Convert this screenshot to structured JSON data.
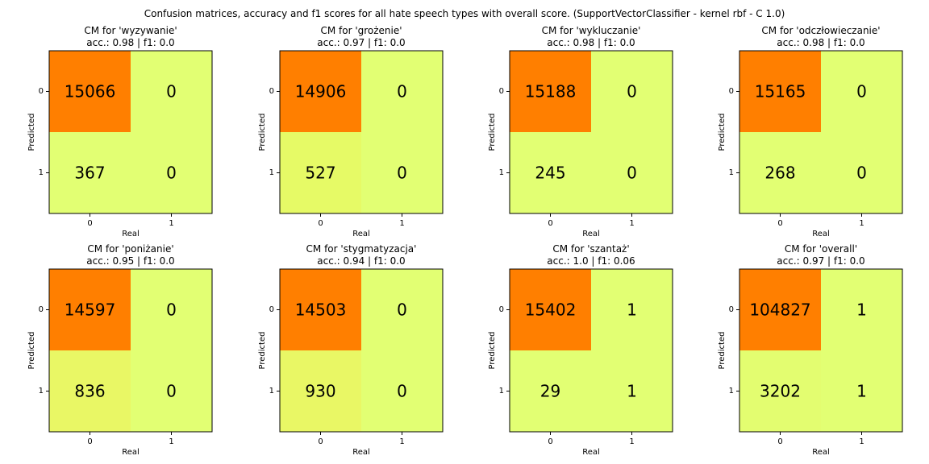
{
  "title": "Confusion matrices, accuracy and f1 scores for all hate speech types with overall score. (SupportVectorClassifier - kernel rbf - C 1.0)",
  "chart_data": [
    {
      "type": "heatmap",
      "title": "CM for 'wyzywanie'",
      "subtitle": "acc.: 0.98 | f1: 0.0",
      "xlabel": "Real",
      "ylabel": "Predicted",
      "x_ticks": [
        "0",
        "1"
      ],
      "y_ticks": [
        "0",
        "1"
      ],
      "matrix": [
        [
          15066,
          0
        ],
        [
          367,
          0
        ]
      ],
      "cell_colors": [
        [
          "#ff7f00",
          "#e2ff73"
        ],
        [
          "#e2ff73",
          "#e2ff73"
        ]
      ]
    },
    {
      "type": "heatmap",
      "title": "CM for 'grożenie'",
      "subtitle": "acc.: 0.97 | f1: 0.0",
      "xlabel": "Real",
      "ylabel": "Predicted",
      "x_ticks": [
        "0",
        "1"
      ],
      "y_ticks": [
        "0",
        "1"
      ],
      "matrix": [
        [
          14906,
          0
        ],
        [
          527,
          0
        ]
      ],
      "cell_colors": [
        [
          "#ff7f00",
          "#e2ff73"
        ],
        [
          "#e6fa66",
          "#e2ff73"
        ]
      ]
    },
    {
      "type": "heatmap",
      "title": "CM for 'wykluczanie'",
      "subtitle": "acc.: 0.98 | f1: 0.0",
      "xlabel": "Real",
      "ylabel": "Predicted",
      "x_ticks": [
        "0",
        "1"
      ],
      "y_ticks": [
        "0",
        "1"
      ],
      "matrix": [
        [
          15188,
          0
        ],
        [
          245,
          0
        ]
      ],
      "cell_colors": [
        [
          "#ff7f00",
          "#e2ff73"
        ],
        [
          "#e2ff73",
          "#e2ff73"
        ]
      ]
    },
    {
      "type": "heatmap",
      "title": "CM for 'odczłowieczanie'",
      "subtitle": "acc.: 0.98 | f1: 0.0",
      "xlabel": "Real",
      "ylabel": "Predicted",
      "x_ticks": [
        "0",
        "1"
      ],
      "y_ticks": [
        "0",
        "1"
      ],
      "matrix": [
        [
          15165,
          0
        ],
        [
          268,
          0
        ]
      ],
      "cell_colors": [
        [
          "#ff7f00",
          "#e2ff73"
        ],
        [
          "#e2ff73",
          "#e2ff73"
        ]
      ]
    },
    {
      "type": "heatmap",
      "title": "CM for 'poniżanie'",
      "subtitle": "acc.: 0.95 | f1: 0.0",
      "xlabel": "Real",
      "ylabel": "Predicted",
      "x_ticks": [
        "0",
        "1"
      ],
      "y_ticks": [
        "0",
        "1"
      ],
      "matrix": [
        [
          14597,
          0
        ],
        [
          836,
          0
        ]
      ],
      "cell_colors": [
        [
          "#ff7f00",
          "#e2ff73"
        ],
        [
          "#e9f765",
          "#e2ff73"
        ]
      ]
    },
    {
      "type": "heatmap",
      "title": "CM for 'stygmatyzacja'",
      "subtitle": "acc.: 0.94 | f1: 0.0",
      "xlabel": "Real",
      "ylabel": "Predicted",
      "x_ticks": [
        "0",
        "1"
      ],
      "y_ticks": [
        "0",
        "1"
      ],
      "matrix": [
        [
          14503,
          0
        ],
        [
          930,
          0
        ]
      ],
      "cell_colors": [
        [
          "#ff7f00",
          "#e2ff73"
        ],
        [
          "#e9f765",
          "#e2ff73"
        ]
      ]
    },
    {
      "type": "heatmap",
      "title": "CM for 'szantaż'",
      "subtitle": "acc.: 1.0 | f1: 0.06",
      "xlabel": "Real",
      "ylabel": "Predicted",
      "x_ticks": [
        "0",
        "1"
      ],
      "y_ticks": [
        "0",
        "1"
      ],
      "matrix": [
        [
          15402,
          1
        ],
        [
          29,
          1
        ]
      ],
      "cell_colors": [
        [
          "#ff7f00",
          "#e2ff73"
        ],
        [
          "#e2ff73",
          "#e2ff73"
        ]
      ]
    },
    {
      "type": "heatmap",
      "title": "CM for 'overall'",
      "subtitle": "acc.: 0.97 | f1: 0.0",
      "xlabel": "Real",
      "ylabel": "Predicted",
      "x_ticks": [
        "0",
        "1"
      ],
      "y_ticks": [
        "0",
        "1"
      ],
      "matrix": [
        [
          104827,
          1
        ],
        [
          3202,
          1
        ]
      ],
      "cell_colors": [
        [
          "#ff7f00",
          "#e2ff73"
        ],
        [
          "#e3fd70",
          "#e2ff73"
        ]
      ]
    }
  ]
}
